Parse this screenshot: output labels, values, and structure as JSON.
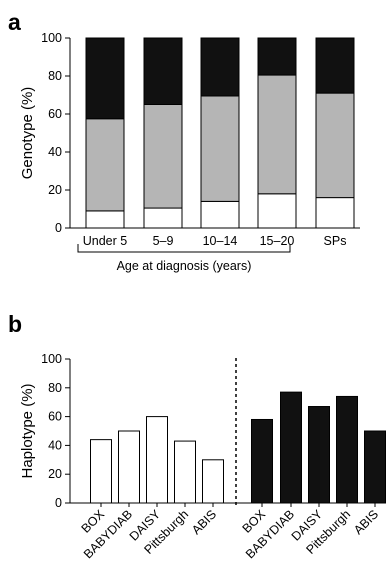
{
  "chart_data": [
    {
      "panel": "a",
      "type": "bar",
      "stacked": true,
      "ylabel": "Genotype (%)",
      "ylim": [
        0,
        100
      ],
      "yticks": [
        0,
        20,
        40,
        60,
        80,
        100
      ],
      "categories": [
        "Under 5",
        "5–9",
        "10–14",
        "15–20",
        "SPs"
      ],
      "group_label": "Age at diagnosis (years)",
      "series": [
        {
          "values": [
            9,
            10.5,
            14,
            18,
            16
          ],
          "color": "#ffffff"
        },
        {
          "values": [
            48.5,
            54.5,
            55.5,
            62.5,
            55
          ],
          "color": "#b5b5b5"
        },
        {
          "values": [
            42.5,
            35,
            30.5,
            19.5,
            29
          ],
          "color": "#111111"
        }
      ]
    },
    {
      "panel": "b",
      "type": "bar",
      "ylabel": "Haplotype (%)",
      "ylim": [
        0,
        100
      ],
      "yticks": [
        0,
        20,
        40,
        60,
        80,
        100
      ],
      "categories": [
        "BOX",
        "BABYDIAB",
        "DAISY",
        "Pittsburgh",
        "ABIS",
        "BOX",
        "BABYDIAB",
        "DAISY",
        "Pittsburgh",
        "ABIS"
      ],
      "series": [
        {
          "values": [
            44,
            50,
            60,
            43,
            30,
            null,
            null,
            null,
            null,
            null
          ],
          "color": "#ffffff"
        },
        {
          "values": [
            null,
            null,
            null,
            null,
            null,
            58,
            77,
            67,
            74,
            50
          ],
          "color": "#111111"
        }
      ]
    }
  ],
  "figure": {
    "panel_a_label": "a",
    "panel_b_label": "b"
  }
}
